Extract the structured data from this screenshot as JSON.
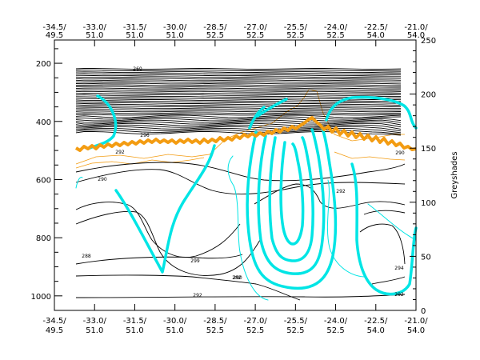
{
  "chart_data": {
    "type": "contour",
    "title": "",
    "x_ticks": [
      {
        "lon": "-34.5",
        "lat": "49.5"
      },
      {
        "lon": "-33.0",
        "lat": "51.0"
      },
      {
        "lon": "-31.5",
        "lat": "51.0"
      },
      {
        "lon": "-30.0",
        "lat": "51.0"
      },
      {
        "lon": "-28.5",
        "lat": "52.5"
      },
      {
        "lon": "-27.0",
        "lat": "52.5"
      },
      {
        "lon": "-25.5",
        "lat": "52.5"
      },
      {
        "lon": "-24.0",
        "lat": "52.5"
      },
      {
        "lon": "-22.5",
        "lat": "54.0"
      },
      {
        "lon": "-21.0",
        "lat": "54.0"
      }
    ],
    "y_left": {
      "label": "",
      "ticks": [
        "200",
        "400",
        "600",
        "800",
        "1000"
      ],
      "range": [
        120,
        1050
      ]
    },
    "y_right": {
      "label": "Greyshades",
      "ticks": [
        "0",
        "50",
        "100",
        "150",
        "200",
        "250"
      ],
      "range": [
        0,
        250
      ]
    },
    "contour_labels": [
      "260",
      "296",
      "292",
      "290",
      "288",
      "299",
      "292",
      "290",
      "282",
      "292",
      "294",
      "292",
      "290"
    ],
    "colors": {
      "theta": "#000000",
      "wind": "#00e5e5",
      "tropopause": "#f39c12",
      "thin_orange": "#f39c12"
    }
  }
}
